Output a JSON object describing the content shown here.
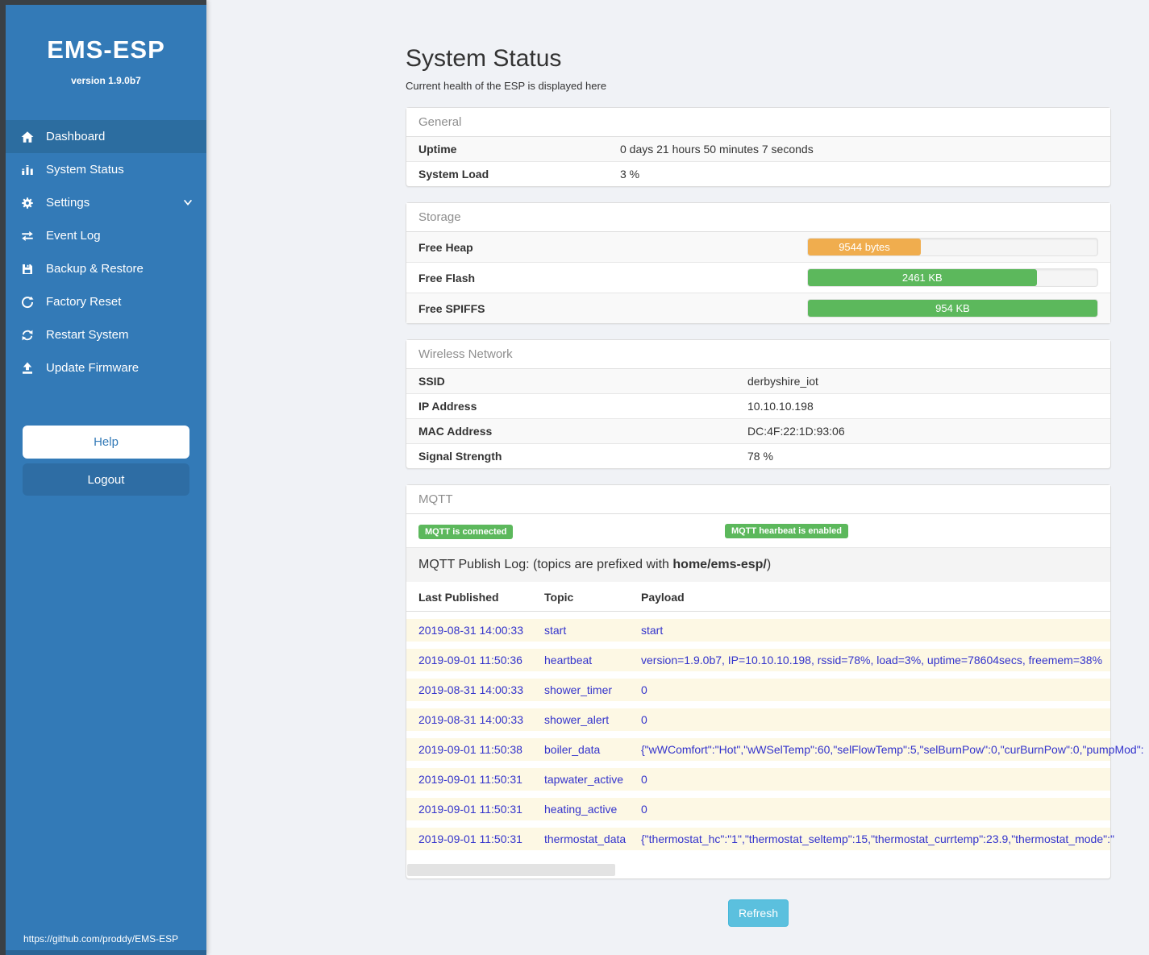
{
  "sidebar": {
    "title": "EMS-ESP",
    "version": "version 1.9.0b7",
    "items": [
      {
        "label": "Dashboard",
        "icon": "home-icon",
        "active": true
      },
      {
        "label": "System Status",
        "icon": "system-status-icon",
        "active": false
      },
      {
        "label": "Settings",
        "icon": "gear-icon",
        "active": false,
        "chevron": "down"
      },
      {
        "label": "Event Log",
        "icon": "swap-arrows-icon",
        "active": false
      },
      {
        "label": "Backup & Restore",
        "icon": "floppy-icon",
        "active": false
      },
      {
        "label": "Factory Reset",
        "icon": "rotate-icon",
        "active": false
      },
      {
        "label": "Restart System",
        "icon": "sync-icon",
        "active": false
      },
      {
        "label": "Update Firmware",
        "icon": "upload-icon",
        "active": false
      }
    ],
    "help_label": "Help",
    "logout_label": "Logout",
    "footer_link": "https://github.com/proddy/EMS-ESP",
    "brand_color": "#337ab7"
  },
  "header": {
    "title": "System Status",
    "subtitle": "Current health of the ESP is displayed here"
  },
  "general": {
    "panel_title": "General",
    "rows": [
      {
        "label": "Uptime",
        "value": "0 days 21 hours 50 minutes 7 seconds"
      },
      {
        "label": "System Load",
        "value": "3 %"
      }
    ]
  },
  "storage": {
    "panel_title": "Storage",
    "rows": [
      {
        "label": "Free Heap",
        "value": "9544 bytes",
        "percent": 39,
        "color": "#f0ad4e"
      },
      {
        "label": "Free Flash",
        "value": "2461 KB",
        "percent": 79,
        "color": "#5cb85c"
      },
      {
        "label": "Free SPIFFS",
        "value": "954 KB",
        "percent": 100,
        "color": "#5cb85c"
      }
    ]
  },
  "wireless": {
    "panel_title": "Wireless Network",
    "rows": [
      {
        "label": "SSID",
        "value": "derbyshire_iot"
      },
      {
        "label": "IP Address",
        "value": "10.10.10.198"
      },
      {
        "label": "MAC Address",
        "value": "DC:4F:22:1D:93:06"
      },
      {
        "label": "Signal Strength",
        "value": "78 %"
      }
    ]
  },
  "mqtt": {
    "panel_title": "MQTT",
    "badge_color": "#5cb85c",
    "badges": [
      {
        "label": "MQTT is connected"
      },
      {
        "label": "MQTT hearbeat is enabled"
      }
    ],
    "publish_log": {
      "before": "MQTT Publish Log: (topics are prefixed with ",
      "bold": "home/ems-esp/",
      "after": ")"
    },
    "table": {
      "headers": [
        "Last Published",
        "Topic",
        "Payload"
      ],
      "rows": [
        {
          "time": "2019-08-31 14:00:33",
          "topic": "start",
          "payload": "start"
        },
        {
          "time": "2019-09-01 11:50:36",
          "topic": "heartbeat",
          "payload": "version=1.9.0b7, IP=10.10.10.198, rssid=78%, load=3%, uptime=78604secs, freemem=38%"
        },
        {
          "time": "2019-08-31 14:00:33",
          "topic": "shower_timer",
          "payload": "0"
        },
        {
          "time": "2019-08-31 14:00:33",
          "topic": "shower_alert",
          "payload": "0"
        },
        {
          "time": "2019-09-01 11:50:38",
          "topic": "boiler_data",
          "payload": "{\"wWComfort\":\"Hot\",\"wWSelTemp\":60,\"selFlowTemp\":5,\"selBurnPow\":0,\"curBurnPow\":0,\"pumpMod\":"
        },
        {
          "time": "2019-09-01 11:50:31",
          "topic": "tapwater_active",
          "payload": "0"
        },
        {
          "time": "2019-09-01 11:50:31",
          "topic": "heating_active",
          "payload": "0"
        },
        {
          "time": "2019-09-01 11:50:31",
          "topic": "thermostat_data",
          "payload": "{\"thermostat_hc\":\"1\",\"thermostat_seltemp\":15,\"thermostat_currtemp\":23.9,\"thermostat_mode\":\""
        }
      ]
    }
  },
  "refresh": {
    "label": "Refresh",
    "accent_color": "#5bc0de"
  }
}
